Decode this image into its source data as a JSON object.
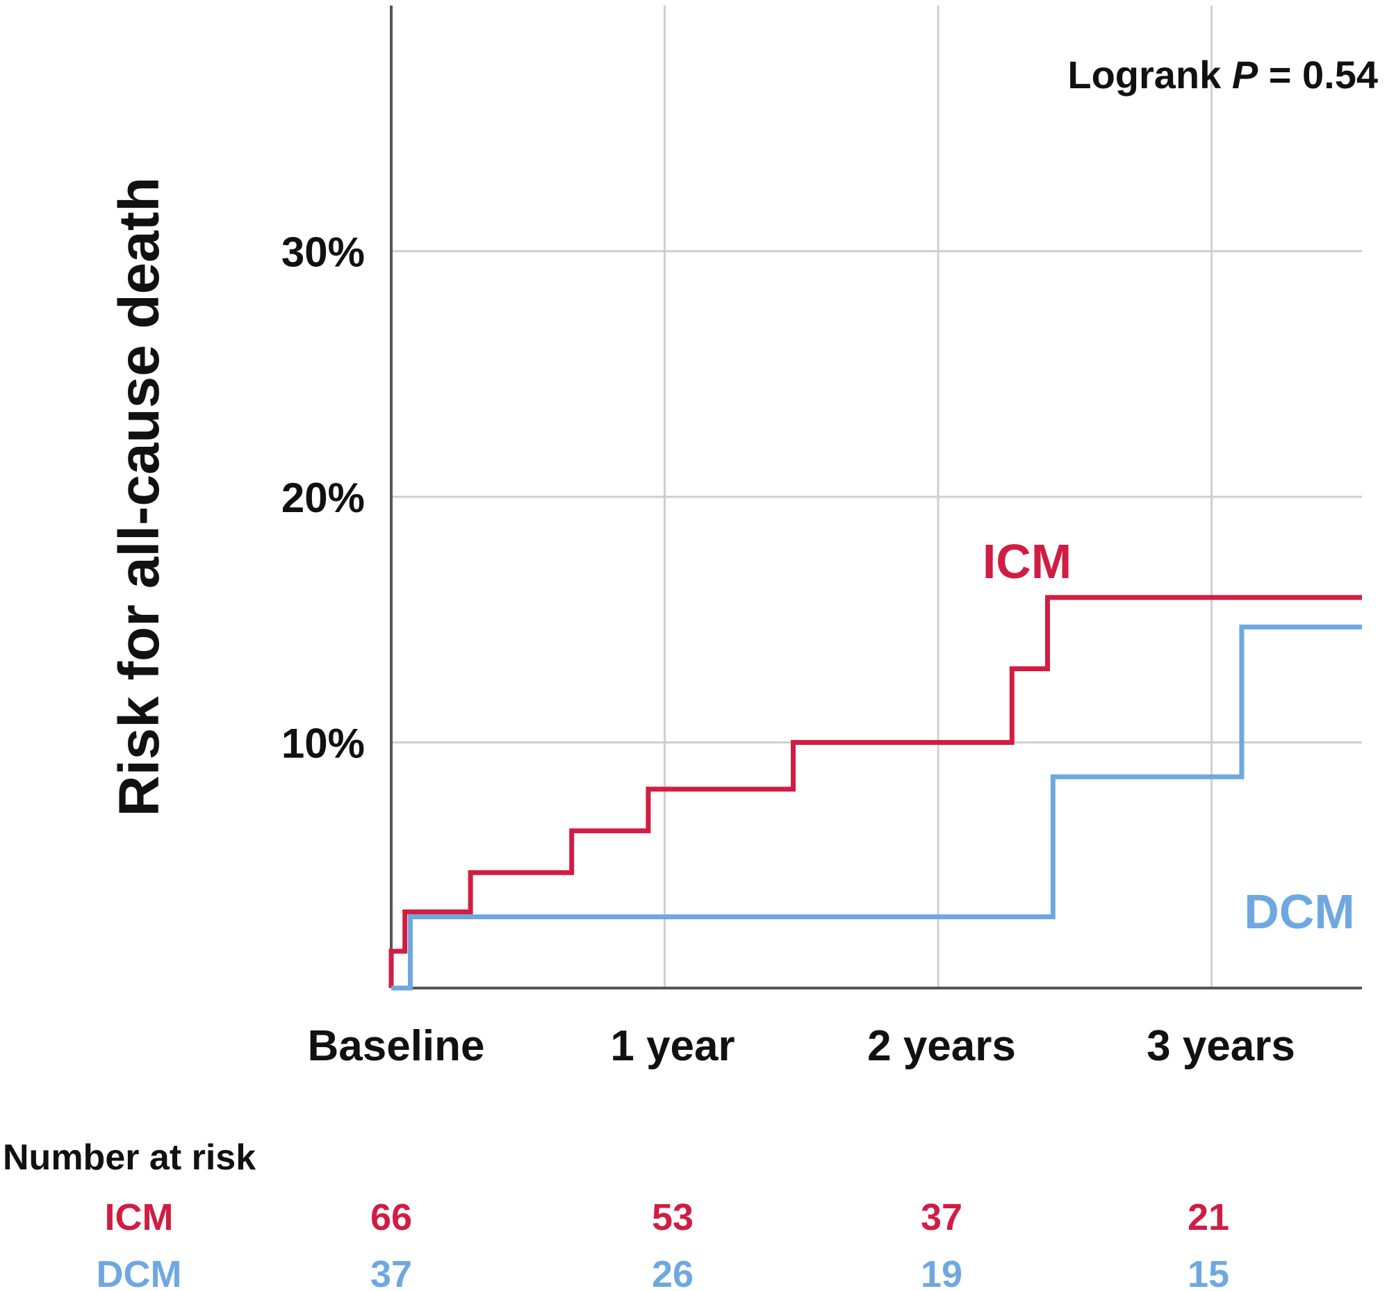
{
  "chart_data": {
    "type": "line",
    "subtype": "kaplan-meier-cumulative-incidence",
    "ylabel": "Risk for all-cause death",
    "xlabel": "",
    "x_ticks": [
      "Baseline",
      "1 year",
      "2 years",
      "3 years"
    ],
    "y_ticks": [
      "10%",
      "20%",
      "30%"
    ],
    "x_range_years": [
      0,
      3.55
    ],
    "y_range_percent": [
      0,
      40
    ],
    "grid": true,
    "annotation": {
      "text": "Logrank ",
      "p_symbol": "P",
      "p_value": " = 0.54"
    },
    "series": [
      {
        "name": "ICM",
        "color": "#d11d43",
        "steps": [
          [
            0,
            0
          ],
          [
            0,
            1.5
          ],
          [
            0.05,
            1.5
          ],
          [
            0.05,
            3.1
          ],
          [
            0.29,
            3.1
          ],
          [
            0.29,
            4.7
          ],
          [
            0.66,
            4.7
          ],
          [
            0.66,
            6.4
          ],
          [
            0.94,
            6.4
          ],
          [
            0.94,
            8.1
          ],
          [
            1.47,
            8.1
          ],
          [
            1.47,
            10.0
          ],
          [
            2.27,
            10.0
          ],
          [
            2.27,
            13.0
          ],
          [
            2.4,
            13.0
          ],
          [
            2.4,
            15.9
          ],
          [
            3.55,
            15.9
          ]
        ]
      },
      {
        "name": "DCM",
        "color": "#6fa8e0",
        "steps": [
          [
            0,
            0
          ],
          [
            0.07,
            0
          ],
          [
            0.07,
            2.9
          ],
          [
            2.42,
            2.9
          ],
          [
            2.42,
            8.6
          ],
          [
            3.11,
            8.6
          ],
          [
            3.11,
            14.7
          ],
          [
            3.55,
            14.7
          ]
        ]
      }
    ]
  },
  "risk_table": {
    "title": "Number at risk",
    "rows": [
      {
        "label": "ICM",
        "color": "#d11d43",
        "values": [
          "66",
          "53",
          "37",
          "21"
        ]
      },
      {
        "label": "DCM",
        "color": "#6fa8e0",
        "values": [
          "37",
          "26",
          "19",
          "15"
        ]
      }
    ]
  }
}
